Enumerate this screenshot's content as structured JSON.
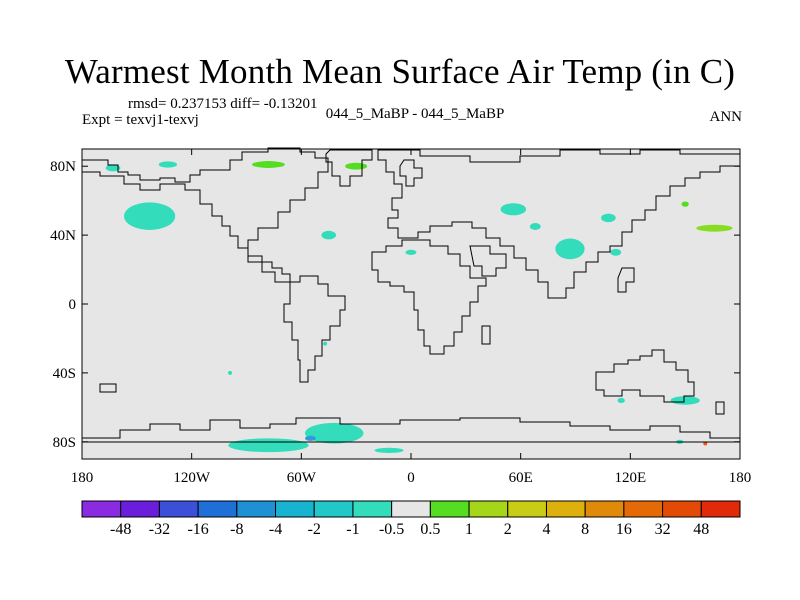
{
  "title": "Warmest Month Mean Surface Air Temp (in C)",
  "stats": "rmsd= 0.237153 diff= -0.13201",
  "expt": "Expt = texvj1-texvj",
  "center_label": "044_5_MaBP - 044_5_MaBP",
  "period": "ANN",
  "colors": {
    "ocean_background": "#e6e6e6",
    "coastline": "#000000",
    "cyan_anomaly": "#33ddbb",
    "green_anomaly": "#55dd22",
    "blue_anomaly": "#3399dd",
    "lime_anomaly": "#88dd22",
    "orange_anomaly": "#ee5511"
  },
  "chart_data": {
    "type": "map",
    "projection": "cylindrical-equidistant",
    "lon_range": [
      -180,
      180
    ],
    "lat_range": [
      -90,
      90
    ],
    "x_ticks": [
      {
        "lon": -180,
        "label": "180"
      },
      {
        "lon": -120,
        "label": "120W"
      },
      {
        "lon": -60,
        "label": "60W"
      },
      {
        "lon": 0,
        "label": "0"
      },
      {
        "lon": 60,
        "label": "60E"
      },
      {
        "lon": 120,
        "label": "120E"
      },
      {
        "lon": 180,
        "label": "180"
      }
    ],
    "y_ticks": [
      {
        "lat": 80,
        "label": "80N"
      },
      {
        "lat": 40,
        "label": "40N"
      },
      {
        "lat": 0,
        "label": "0"
      },
      {
        "lat": -40,
        "label": "40S"
      },
      {
        "lat": -80,
        "label": "80S"
      }
    ],
    "colorbar": {
      "colors": [
        "#8a2be2",
        "#6a1edc",
        "#3b4fd8",
        "#1f6fd8",
        "#1e90d4",
        "#19b3d2",
        "#22c8c8",
        "#33ddbb",
        "#e6e6e6",
        "#55dd22",
        "#a6d61a",
        "#c8cc14",
        "#ddb00e",
        "#e08a0a",
        "#e46a08",
        "#e34a06",
        "#e02a0a"
      ],
      "labels": [
        "-48",
        "-32",
        "-16",
        "-8",
        "-4",
        "-2",
        "-1",
        "-0.5",
        "0.5",
        "1",
        "2",
        "4",
        "8",
        "16",
        "32",
        "48"
      ]
    },
    "anomaly_regions": [
      {
        "name": "alaska-cyan",
        "lon": -143,
        "lat": 51,
        "rx": 14,
        "ry": 8,
        "color": "cyan"
      },
      {
        "name": "arctic-canada-cyan",
        "lon": -163,
        "lat": 79,
        "rx": 4,
        "ry": 2,
        "color": "cyan"
      },
      {
        "name": "arctic-bering-cyan",
        "lon": -133,
        "lat": 81,
        "rx": 5,
        "ry": 1.8,
        "color": "cyan"
      },
      {
        "name": "greenland-north-green",
        "lon": -78,
        "lat": 81,
        "rx": 9,
        "ry": 2,
        "color": "green"
      },
      {
        "name": "greenland-east-green",
        "lon": -30,
        "lat": 80,
        "rx": 6,
        "ry": 2,
        "color": "green"
      },
      {
        "name": "north-atlantic-cyan",
        "lon": -45,
        "lat": 40,
        "rx": 4,
        "ry": 2.5,
        "color": "cyan"
      },
      {
        "name": "mediterranean-cyan",
        "lon": 0,
        "lat": 30,
        "rx": 3,
        "ry": 1.5,
        "color": "cyan"
      },
      {
        "name": "north-asia-cyan",
        "lon": 56,
        "lat": 55,
        "rx": 7,
        "ry": 3.5,
        "color": "cyan"
      },
      {
        "name": "central-asia-cyan",
        "lon": 68,
        "lat": 45,
        "rx": 3,
        "ry": 2,
        "color": "cyan"
      },
      {
        "name": "east-asia-cyan",
        "lon": 108,
        "lat": 50,
        "rx": 4,
        "ry": 2.5,
        "color": "cyan"
      },
      {
        "name": "india-china-cyan",
        "lon": 87,
        "lat": 32,
        "rx": 8,
        "ry": 6,
        "color": "cyan"
      },
      {
        "name": "japan-cyan",
        "lon": 112,
        "lat": 30,
        "rx": 3,
        "ry": 2,
        "color": "cyan"
      },
      {
        "name": "north-pacific-green",
        "lon": 166,
        "lat": 44,
        "rx": 10,
        "ry": 2,
        "color": "lime"
      },
      {
        "name": "siberia-green",
        "lon": 150,
        "lat": 58,
        "rx": 2,
        "ry": 1.5,
        "color": "green"
      },
      {
        "name": "south-atlantic-cyan",
        "lon": -47,
        "lat": -23,
        "rx": 1,
        "ry": 1,
        "color": "cyan"
      },
      {
        "name": "south-america-cyan",
        "lon": -99,
        "lat": -40,
        "rx": 1,
        "ry": 1,
        "color": "cyan"
      },
      {
        "name": "australia-south-cyan",
        "lon": 150,
        "lat": -56,
        "rx": 8,
        "ry": 2.5,
        "color": "cyan"
      },
      {
        "name": "australia-west-cyan",
        "lon": 115,
        "lat": -56,
        "rx": 2,
        "ry": 1.5,
        "color": "cyan"
      },
      {
        "name": "antarctica-west-cyan",
        "lon": -42,
        "lat": -75,
        "rx": 16,
        "ry": 6,
        "color": "cyan"
      },
      {
        "name": "antarctica-ross-cyan",
        "lon": -78,
        "lat": -82,
        "rx": 22,
        "ry": 4,
        "color": "cyan"
      },
      {
        "name": "antarctica-core-blue",
        "lon": -55,
        "lat": -78,
        "rx": 3,
        "ry": 1.5,
        "color": "blue"
      },
      {
        "name": "antarctica-south-cyan",
        "lon": -12,
        "lat": -85,
        "rx": 8,
        "ry": 1.5,
        "color": "cyan"
      },
      {
        "name": "antarctica-east-cyan",
        "lon": 147,
        "lat": -80,
        "rx": 2,
        "ry": 1.2,
        "color": "cyan"
      },
      {
        "name": "antarctica-east-orange",
        "lon": 161,
        "lat": -81,
        "rx": 1,
        "ry": 1,
        "color": "orange"
      }
    ]
  }
}
